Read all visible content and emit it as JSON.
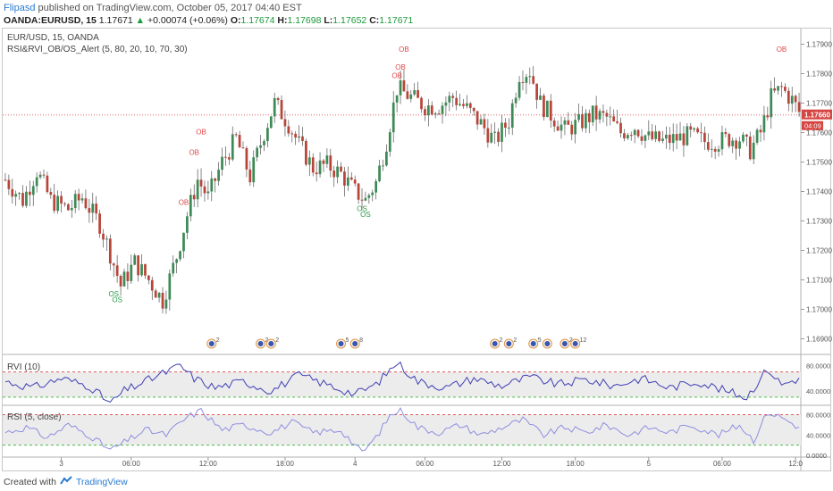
{
  "header": {
    "user": "Flipasd",
    "published": "published on TradingView.com, October 05, 2017 04:40 EST",
    "symbol": "OANDA:EURUSD, 15",
    "last": "1.17671",
    "change": "+0.00074 (+0.06%)",
    "open_label": "O:",
    "open": "1.17674",
    "high_label": "H:",
    "high": "1.17698",
    "low_label": "L:",
    "low": "1.17652",
    "close_label": "C:",
    "close": "1.17671"
  },
  "legend": {
    "line1": "EUR/USD, 15, OANDA",
    "line2": "RSI&RVI_OB/OS_Alert (5, 80, 20, 10, 70, 30)"
  },
  "footer": {
    "created_with": "Created with",
    "brand": "TradingView"
  },
  "colors": {
    "bull": "#3e8a57",
    "bear": "#b8453a",
    "rvi_line": "#3f3fb5",
    "rsi_line": "#8e8ee0",
    "price_line": "#e06060",
    "price_badge": "#d64541",
    "timer_badge": "#d64541",
    "ob_text": "#e04848",
    "os_text": "#2a9a4a",
    "band_fill": "#ececec",
    "level_hi": "#e05a5a",
    "level_lo": "#4cbb4c"
  },
  "chart_data": {
    "type": "candlestick",
    "price_axis": {
      "ticks": [
        "1.17900",
        "1.17800",
        "1.17700",
        "1.17600",
        "1.17500",
        "1.17400",
        "1.17300",
        "1.17200",
        "1.17100",
        "1.17000",
        "1.16900"
      ],
      "range": [
        1.1685,
        1.1795
      ],
      "current_price": "1.17660",
      "timer": "04:09"
    },
    "time_axis": {
      "labels": [
        {
          "text": "3",
          "index": 16
        },
        {
          "text": "06:00",
          "index": 36
        },
        {
          "text": "12:00",
          "index": 58
        },
        {
          "text": "18:00",
          "index": 80
        },
        {
          "text": "4",
          "index": 100
        },
        {
          "text": "06:00",
          "index": 120
        },
        {
          "text": "12:00",
          "index": 142
        },
        {
          "text": "18:00",
          "index": 163
        },
        {
          "text": "5",
          "index": 184
        },
        {
          "text": "06:00",
          "index": 205
        },
        {
          "text": "12:0",
          "index": 226
        }
      ],
      "count": 228
    },
    "price_anchors": [
      [
        0,
        1.1744
      ],
      [
        5,
        1.1737
      ],
      [
        9,
        1.1747
      ],
      [
        13,
        1.1737
      ],
      [
        18,
        1.1734
      ],
      [
        22,
        1.1738
      ],
      [
        27,
        1.1729
      ],
      [
        30,
        1.1719
      ],
      [
        33,
        1.1708
      ],
      [
        37,
        1.1716
      ],
      [
        41,
        1.171
      ],
      [
        45,
        1.1703
      ],
      [
        49,
        1.1718
      ],
      [
        52,
        1.1732
      ],
      [
        55,
        1.1744
      ],
      [
        58,
        1.1738
      ],
      [
        62,
        1.175
      ],
      [
        66,
        1.1758
      ],
      [
        70,
        1.1745
      ],
      [
        74,
        1.176
      ],
      [
        77,
        1.177
      ],
      [
        81,
        1.1763
      ],
      [
        84,
        1.1756
      ],
      [
        88,
        1.1748
      ],
      [
        92,
        1.1749
      ],
      [
        96,
        1.1746
      ],
      [
        100,
        1.174
      ],
      [
        103,
        1.1737
      ],
      [
        106,
        1.1743
      ],
      [
        109,
        1.1757
      ],
      [
        112,
        1.1775
      ],
      [
        116,
        1.1772
      ],
      [
        120,
        1.1769
      ],
      [
        124,
        1.1769
      ],
      [
        128,
        1.1772
      ],
      [
        132,
        1.1768
      ],
      [
        136,
        1.1763
      ],
      [
        140,
        1.1757
      ],
      [
        144,
        1.1764
      ],
      [
        147,
        1.178
      ],
      [
        150,
        1.1781
      ],
      [
        153,
        1.177
      ],
      [
        156,
        1.1766
      ],
      [
        160,
        1.1761
      ],
      [
        164,
        1.1763
      ],
      [
        168,
        1.1766
      ],
      [
        172,
        1.1765
      ],
      [
        176,
        1.176
      ],
      [
        180,
        1.1762
      ],
      [
        184,
        1.1758
      ],
      [
        188,
        1.1757
      ],
      [
        192,
        1.1758
      ],
      [
        196,
        1.1759
      ],
      [
        200,
        1.1757
      ],
      [
        204,
        1.1757
      ],
      [
        207,
        1.1758
      ],
      [
        210,
        1.1758
      ],
      [
        213,
        1.1754
      ],
      [
        216,
        1.176
      ],
      [
        219,
        1.1772
      ],
      [
        222,
        1.1775
      ],
      [
        225,
        1.1771
      ],
      [
        227,
        1.1767
      ]
    ],
    "signals": [
      {
        "label": "OS",
        "index": 31,
        "price": 1.1708,
        "kind": "os"
      },
      {
        "label": "OS",
        "index": 32,
        "price": 1.1706,
        "kind": "os"
      },
      {
        "label": "OB",
        "index": 51,
        "price": 1.1733,
        "kind": "ob"
      },
      {
        "label": "OB",
        "index": 54,
        "price": 1.175,
        "kind": "ob"
      },
      {
        "label": "OB",
        "index": 56,
        "price": 1.1757,
        "kind": "ob"
      },
      {
        "label": "OS",
        "index": 102,
        "price": 1.1737,
        "kind": "os"
      },
      {
        "label": "OS",
        "index": 103,
        "price": 1.1735,
        "kind": "os"
      },
      {
        "label": "OB",
        "index": 112,
        "price": 1.1776,
        "kind": "ob"
      },
      {
        "label": "OB",
        "index": 113,
        "price": 1.1779,
        "kind": "ob"
      },
      {
        "label": "OB",
        "index": 114,
        "price": 1.1785,
        "kind": "ob"
      },
      {
        "label": "OB",
        "index": 222,
        "price": 1.1785,
        "kind": "ob"
      }
    ],
    "events": [
      {
        "index": 59,
        "text": "2"
      },
      {
        "index": 73,
        "text": "2"
      },
      {
        "index": 76,
        "text": "2"
      },
      {
        "index": 96,
        "text": "5"
      },
      {
        "index": 100,
        "text": "8"
      },
      {
        "index": 140,
        "text": "2"
      },
      {
        "index": 144,
        "text": "2"
      },
      {
        "index": 151,
        "text": "5"
      },
      {
        "index": 155,
        "text": ""
      },
      {
        "index": 160,
        "text": "2"
      },
      {
        "index": 163,
        "text": "12"
      }
    ],
    "rvi": {
      "title": "RVI (10)",
      "ticks": [
        "80.0000",
        "40.0000"
      ],
      "range": [
        20,
        95
      ],
      "levels": [
        70,
        30
      ],
      "anchors": [
        [
          0,
          55
        ],
        [
          8,
          45
        ],
        [
          16,
          60
        ],
        [
          24,
          48
        ],
        [
          30,
          20
        ],
        [
          34,
          40
        ],
        [
          42,
          60
        ],
        [
          50,
          80
        ],
        [
          54,
          60
        ],
        [
          60,
          45
        ],
        [
          68,
          55
        ],
        [
          76,
          40
        ],
        [
          84,
          65
        ],
        [
          92,
          50
        ],
        [
          100,
          35
        ],
        [
          106,
          50
        ],
        [
          112,
          85
        ],
        [
          118,
          55
        ],
        [
          126,
          45
        ],
        [
          134,
          60
        ],
        [
          142,
          48
        ],
        [
          150,
          62
        ],
        [
          158,
          50
        ],
        [
          166,
          58
        ],
        [
          174,
          48
        ],
        [
          182,
          60
        ],
        [
          190,
          45
        ],
        [
          198,
          55
        ],
        [
          206,
          40
        ],
        [
          212,
          30
        ],
        [
          218,
          75
        ],
        [
          222,
          50
        ],
        [
          227,
          60
        ]
      ]
    },
    "rsi": {
      "title": "RSI (5, close)",
      "ticks": [
        "80.0000",
        "40.0000",
        "0.0000"
      ],
      "range": [
        0,
        95
      ],
      "levels": [
        80,
        20
      ],
      "anchors": [
        [
          0,
          45
        ],
        [
          6,
          55
        ],
        [
          12,
          35
        ],
        [
          18,
          60
        ],
        [
          24,
          40
        ],
        [
          30,
          10
        ],
        [
          34,
          25
        ],
        [
          40,
          50
        ],
        [
          46,
          40
        ],
        [
          52,
          75
        ],
        [
          56,
          88
        ],
        [
          62,
          50
        ],
        [
          68,
          60
        ],
        [
          76,
          45
        ],
        [
          82,
          65
        ],
        [
          88,
          45
        ],
        [
          96,
          50
        ],
        [
          102,
          5
        ],
        [
          106,
          35
        ],
        [
          110,
          78
        ],
        [
          113,
          90
        ],
        [
          118,
          55
        ],
        [
          124,
          45
        ],
        [
          130,
          60
        ],
        [
          136,
          40
        ],
        [
          142,
          55
        ],
        [
          148,
          70
        ],
        [
          154,
          40
        ],
        [
          160,
          55
        ],
        [
          166,
          45
        ],
        [
          172,
          60
        ],
        [
          178,
          40
        ],
        [
          184,
          55
        ],
        [
          190,
          45
        ],
        [
          196,
          60
        ],
        [
          204,
          40
        ],
        [
          210,
          60
        ],
        [
          214,
          30
        ],
        [
          218,
          85
        ],
        [
          222,
          75
        ],
        [
          227,
          55
        ]
      ]
    }
  }
}
